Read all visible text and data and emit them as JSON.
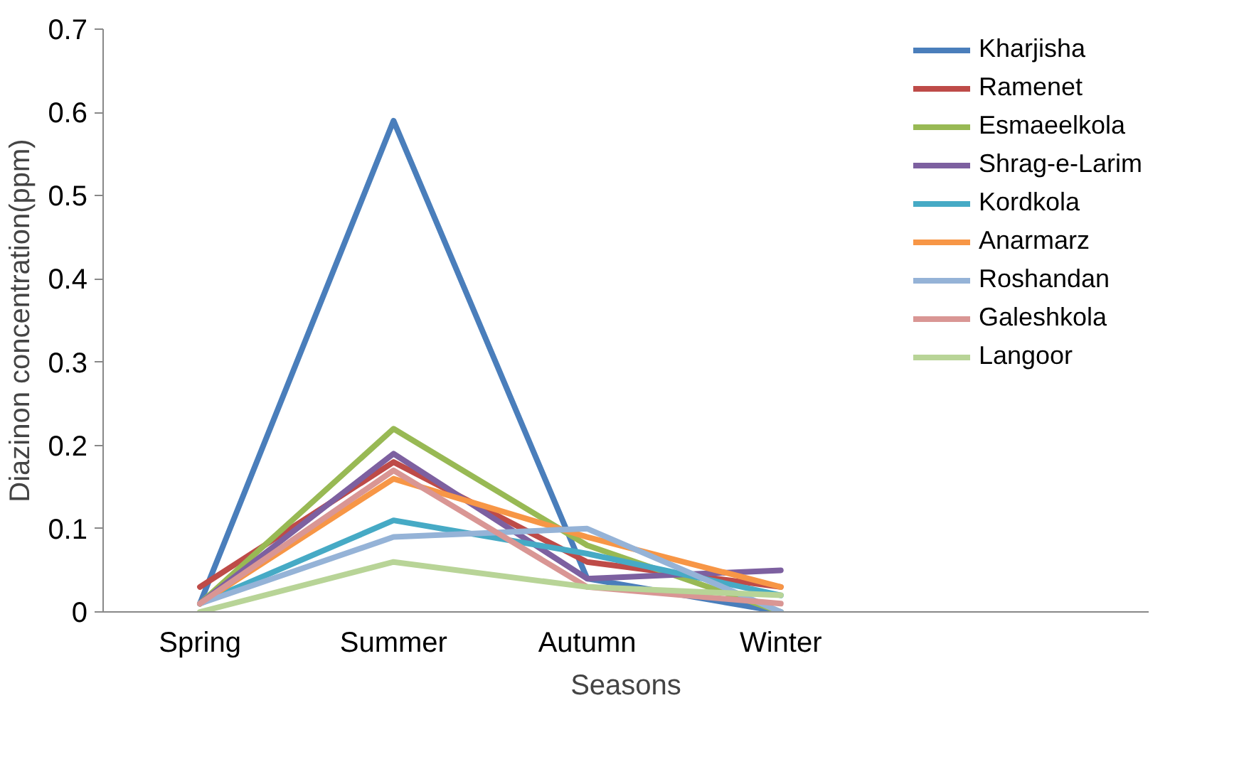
{
  "chart_data": {
    "type": "line",
    "xlabel": "Seasons",
    "ylabel": "Diazinon concentration(ppm)",
    "categories": [
      "Spring",
      "Summer",
      "Autumn",
      "Winter"
    ],
    "series": [
      {
        "name": "Kharjisha",
        "color": "#4a7ebb",
        "values": [
          0.01,
          0.59,
          0.04,
          0.0
        ]
      },
      {
        "name": "Ramenet",
        "color": "#be4b48",
        "values": [
          0.03,
          0.18,
          0.06,
          0.03
        ]
      },
      {
        "name": "Esmaeelkola",
        "color": "#98b954",
        "values": [
          0.01,
          0.22,
          0.08,
          0.0
        ]
      },
      {
        "name": "Shrag-e-Larim",
        "color": "#7d60a0",
        "values": [
          0.01,
          0.19,
          0.04,
          0.05
        ]
      },
      {
        "name": "Kordkola",
        "color": "#46aac5",
        "values": [
          0.01,
          0.11,
          0.07,
          0.02
        ]
      },
      {
        "name": "Anarmarz",
        "color": "#f79646",
        "values": [
          0.01,
          0.16,
          0.09,
          0.03
        ]
      },
      {
        "name": "Roshandan",
        "color": "#95b3d7",
        "values": [
          0.01,
          0.09,
          0.1,
          0.0
        ]
      },
      {
        "name": "Galeshkola",
        "color": "#d99694",
        "values": [
          0.01,
          0.17,
          0.03,
          0.01
        ]
      },
      {
        "name": "Langoor",
        "color": "#b8d497",
        "values": [
          0.0,
          0.06,
          0.03,
          0.02
        ]
      }
    ],
    "ylim": [
      0,
      0.7
    ],
    "yticks": [
      0,
      0.1,
      0.2,
      0.3,
      0.4,
      0.5,
      0.6,
      0.7
    ],
    "grid": false,
    "legend": "right",
    "marker": "none",
    "line_style": "solid"
  }
}
